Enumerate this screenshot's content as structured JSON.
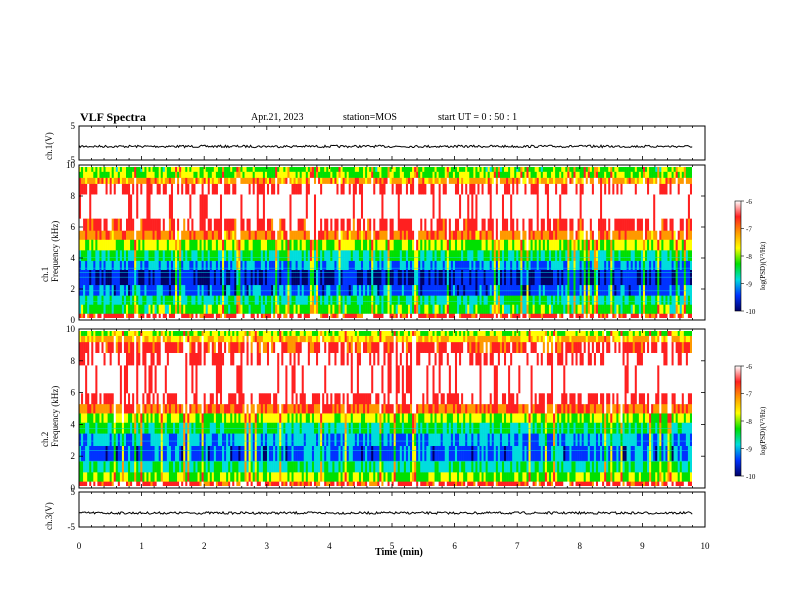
{
  "header": {
    "title": "VLF Spectra",
    "date": "Apr.21, 2023",
    "station": "station=MOS",
    "start": "start UT =  0 : 50 : 1"
  },
  "colors": {
    "white": "#ffffff",
    "red": "#ff2020",
    "orange": "#ff9900",
    "yellow": "#ffff00",
    "green": "#00e000",
    "cyan": "#00dddd",
    "blue": "#0033ff",
    "navy": "#000066"
  },
  "chart_data": [
    {
      "type": "line",
      "panel": "ch1-amplitude",
      "ylabel": "ch.1(V)",
      "ylim": [
        -5,
        5
      ],
      "yticks": [
        "5",
        "-5"
      ],
      "xlim": [
        0,
        10
      ],
      "baseline": -1
    },
    {
      "type": "heatmap",
      "panel": "ch1-spectrogram",
      "ylabel": "ch.1\nFrequency (kHz)",
      "ylim": [
        0,
        10
      ],
      "yticks": [
        "10",
        "8",
        "6",
        "4",
        "2",
        "0"
      ],
      "xlim": [
        0,
        10
      ],
      "colorbar": {
        "label": "log(PSD)(V²/Hz)",
        "range": [
          -10,
          -6
        ],
        "ticks": [
          "-6",
          "-7",
          "-8",
          "-9",
          "-10"
        ]
      }
    },
    {
      "type": "heatmap",
      "panel": "ch2-spectrogram",
      "ylabel": "ch.2\nFrequency (kHz)",
      "ylim": [
        0,
        10
      ],
      "yticks": [
        "10",
        "8",
        "6",
        "4",
        "2",
        "0"
      ],
      "xlim": [
        0,
        10
      ],
      "colorbar": {
        "label": "log(PSD)(V²/Hz)",
        "range": [
          -10,
          -6
        ],
        "ticks": [
          "-6",
          "-7",
          "-8",
          "-9",
          "-10"
        ]
      }
    },
    {
      "type": "line",
      "panel": "ch3-amplitude",
      "ylabel": "ch.3(V)",
      "ylim": [
        -5,
        5
      ],
      "yticks": [
        "5",
        "-5"
      ],
      "xlim": [
        0,
        10
      ],
      "xlabel": "Time (min)",
      "xticks": [
        "0",
        "1",
        "2",
        "3",
        "4",
        "5",
        "6",
        "7",
        "8",
        "9",
        "10"
      ],
      "baseline": -1
    }
  ]
}
